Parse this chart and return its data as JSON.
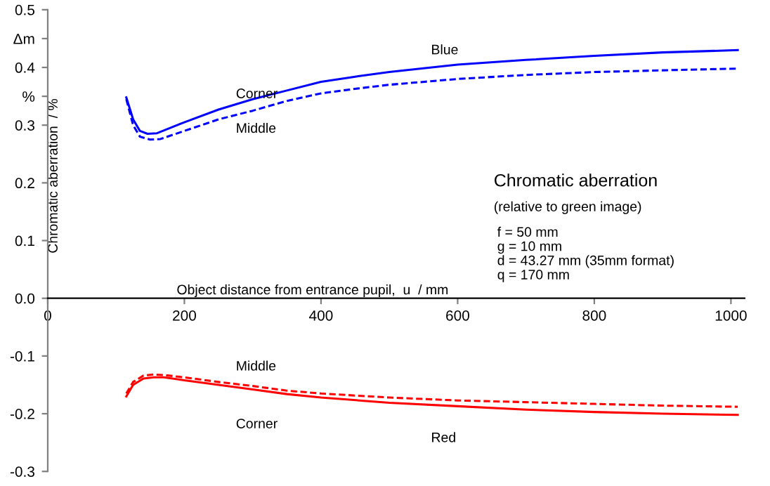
{
  "chart_data": {
    "type": "line",
    "xlabel": "Object distance from entrance pupil,  u  / mm",
    "ylabel": "Chromatic aberration  / %",
    "xlim": [
      0,
      1020
    ],
    "xticks": [
      0,
      200,
      400,
      600,
      800,
      1000
    ],
    "ylim": [
      -0.3,
      0.5
    ],
    "yticks": [
      {
        "value": -0.3,
        "label": "-0.3"
      },
      {
        "value": -0.2,
        "label": "-0.2"
      },
      {
        "value": -0.1,
        "label": "-0.1"
      },
      {
        "value": 0,
        "label": "0.0"
      },
      {
        "value": 0.1,
        "label": "0.1"
      },
      {
        "value": 0.2,
        "label": "0.2"
      },
      {
        "value": 0.3,
        "label": "0.3"
      },
      {
        "value": 0.35,
        "label": "%"
      },
      {
        "value": 0.4,
        "label": "0.4"
      },
      {
        "value": 0.45,
        "label": "Δm"
      },
      {
        "value": 0.5,
        "label": "0.5"
      }
    ],
    "grid": false,
    "legend": false,
    "marker": "none",
    "series": [
      {
        "color": "#0000ff",
        "line_style": "solid",
        "x": [
          115,
          125,
          135,
          146,
          160,
          200,
          250,
          300,
          350,
          400,
          450,
          500,
          600,
          700,
          800,
          900,
          1010
        ],
        "values": [
          0.348,
          0.31,
          0.29,
          0.285,
          0.286,
          0.305,
          0.327,
          0.345,
          0.36,
          0.375,
          0.384,
          0.392,
          0.405,
          0.413,
          0.42,
          0.426,
          0.43
        ]
      },
      {
        "color": "#0000ff",
        "line_style": "dashed",
        "x": [
          115,
          125,
          135,
          150,
          165,
          200,
          250,
          300,
          350,
          400,
          450,
          500,
          600,
          700,
          800,
          900,
          1010
        ],
        "values": [
          0.345,
          0.3,
          0.28,
          0.275,
          0.276,
          0.29,
          0.31,
          0.325,
          0.342,
          0.355,
          0.363,
          0.37,
          0.38,
          0.387,
          0.392,
          0.395,
          0.398
        ]
      },
      {
        "color": "#ff0000",
        "line_style": "solid",
        "x": [
          115,
          125,
          140,
          155,
          170,
          200,
          250,
          300,
          350,
          400,
          500,
          600,
          700,
          800,
          900,
          1010
        ],
        "values": [
          -0.17,
          -0.15,
          -0.139,
          -0.137,
          -0.137,
          -0.142,
          -0.15,
          -0.158,
          -0.166,
          -0.172,
          -0.181,
          -0.187,
          -0.193,
          -0.197,
          -0.2,
          -0.202
        ]
      },
      {
        "color": "#ff0000",
        "line_style": "dashed",
        "x": [
          115,
          125,
          140,
          155,
          170,
          200,
          250,
          300,
          350,
          400,
          500,
          600,
          700,
          800,
          900,
          1010
        ],
        "values": [
          -0.165,
          -0.145,
          -0.134,
          -0.132,
          -0.133,
          -0.137,
          -0.145,
          -0.152,
          -0.16,
          -0.165,
          -0.172,
          -0.177,
          -0.18,
          -0.183,
          -0.186,
          -0.188
        ]
      }
    ],
    "annotations": [
      "Blue",
      "Corner",
      "Middle",
      "Middle",
      "Corner",
      "Red",
      "Chromatic aberration",
      "(relative to green image)",
      "f = 50 mm\ng = 10 mm\nd = 43.27 mm (35mm format)\nq = 170 mm"
    ]
  }
}
